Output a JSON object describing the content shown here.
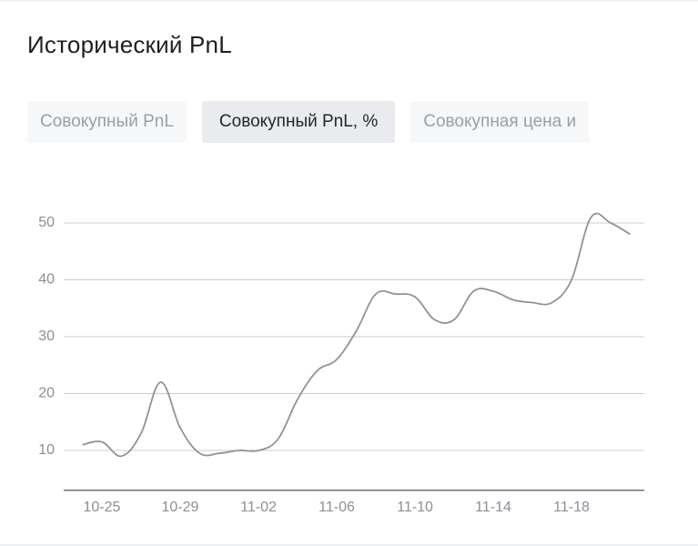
{
  "header": {
    "title": "Исторический PnL"
  },
  "tabs": [
    "Совокупный PnL",
    "Совокупный PnL, %",
    "Совокупная цена и"
  ],
  "chart_data": {
    "type": "line",
    "categories": [
      null,
      "10-25",
      null,
      null,
      null,
      "10-29",
      null,
      null,
      null,
      "11-02",
      null,
      null,
      null,
      "11-06",
      null,
      null,
      null,
      "11-10",
      null,
      null,
      null,
      "11-14",
      null,
      null,
      null,
      "11-18",
      null,
      null,
      null
    ],
    "series": [
      {
        "color": "#8f9399",
        "values": [
          11,
          11.5,
          9,
          13,
          22,
          14,
          9.5,
          9.5,
          10,
          10,
          12,
          19,
          24,
          26,
          31,
          37.5,
          37.5,
          37,
          33,
          33,
          38,
          38,
          36.5,
          36,
          36,
          40,
          51,
          50,
          48
        ]
      }
    ],
    "ylim": [
      3,
      57
    ],
    "yticks": [
      10,
      20,
      30,
      40,
      50
    ],
    "grid": true
  }
}
